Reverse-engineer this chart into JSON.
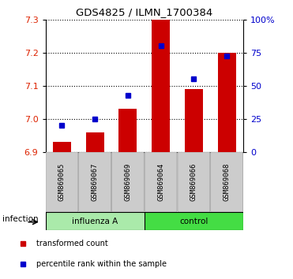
{
  "title": "GDS4825 / ILMN_1700384",
  "samples": [
    "GSM869065",
    "GSM869067",
    "GSM869069",
    "GSM869064",
    "GSM869066",
    "GSM869068"
  ],
  "bar_values": [
    6.93,
    6.96,
    7.03,
    7.3,
    7.09,
    7.2
  ],
  "dot_values": [
    6.98,
    7.0,
    7.07,
    7.22,
    7.12,
    7.19
  ],
  "ylim": [
    6.9,
    7.3
  ],
  "yticks_left": [
    6.9,
    7.0,
    7.1,
    7.2,
    7.3
  ],
  "yticks_right": [
    0,
    25,
    50,
    75,
    100
  ],
  "bar_color": "#cc0000",
  "dot_color": "#0000cc",
  "groups": [
    {
      "label": "influenza A",
      "start": 0,
      "end": 3,
      "color": "#aaeaaa"
    },
    {
      "label": "control",
      "start": 3,
      "end": 6,
      "color": "#44dd44"
    }
  ],
  "group_label": "infection",
  "tick_label_color_left": "#dd2200",
  "tick_label_color_right": "#0000cc",
  "background_color": "#ffffff",
  "legend_items": [
    {
      "label": "transformed count",
      "color": "#cc0000"
    },
    {
      "label": "percentile rank within the sample",
      "color": "#0000cc"
    }
  ],
  "sample_box_color": "#cccccc",
  "sample_box_edge": "#999999"
}
